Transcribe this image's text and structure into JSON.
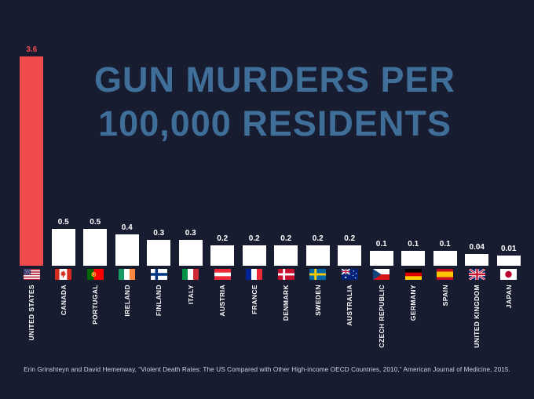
{
  "page": {
    "background": "#181c30"
  },
  "title": {
    "line1": "GUN MURDERS PER",
    "line2": "100,000 RESIDENTS",
    "color": "#3f6f99"
  },
  "chart_data": {
    "type": "bar",
    "title": "GUN MURDERS PER 100,000 RESIDENTS",
    "ylabel": "Gun murders per 100,000 residents",
    "ylim": [
      0,
      3.6
    ],
    "grid": false,
    "legend": false,
    "categories": [
      "UNITED STATES",
      "CANADA",
      "PORTUGAL",
      "IRELAND",
      "FINLAND",
      "ITALY",
      "AUSTRIA",
      "FRANCE",
      "DENMARK",
      "SWEDEN",
      "AUSTRALIA",
      "CZECH REPUBLIC",
      "GERMANY",
      "SPAIN",
      "UNITED KINGDOM",
      "JAPAN"
    ],
    "values": [
      3.6,
      0.5,
      0.5,
      0.4,
      0.3,
      0.3,
      0.2,
      0.2,
      0.2,
      0.2,
      0.2,
      0.1,
      0.1,
      0.1,
      0.04,
      0.01
    ],
    "value_labels": [
      "3.6",
      "0.5",
      "0.5",
      "0.4",
      "0.3",
      "0.3",
      "0.2",
      "0.2",
      "0.2",
      "0.2",
      "0.2",
      "0.1",
      "0.1",
      "0.1",
      "0.04",
      "0.01"
    ],
    "flags": [
      "us",
      "canada",
      "portugal",
      "ireland",
      "finland",
      "italy",
      "austria",
      "france",
      "denmark",
      "sweden",
      "australia",
      "czech",
      "germany",
      "spain",
      "uk",
      "japan"
    ],
    "flag_icons": [
      "us-flag-icon",
      "canada-flag-icon",
      "portugal-flag-icon",
      "ireland-flag-icon",
      "finland-flag-icon",
      "italy-flag-icon",
      "austria-flag-icon",
      "france-flag-icon",
      "denmark-flag-icon",
      "sweden-flag-icon",
      "australia-flag-icon",
      "czech-flag-icon",
      "germany-flag-icon",
      "spain-flag-icon",
      "uk-flag-icon",
      "japan-flag-icon"
    ],
    "highlight": {
      "index": 0,
      "color": "#ef4b4c"
    },
    "bar_color": "#ffffff"
  },
  "footer": {
    "citation": "Erin Grinshteyn and David Hemenway, “Violent Death Rates: The US Compared with Other High-income OECD Countries, 2010,” American Journal of Medicine, 2015."
  }
}
